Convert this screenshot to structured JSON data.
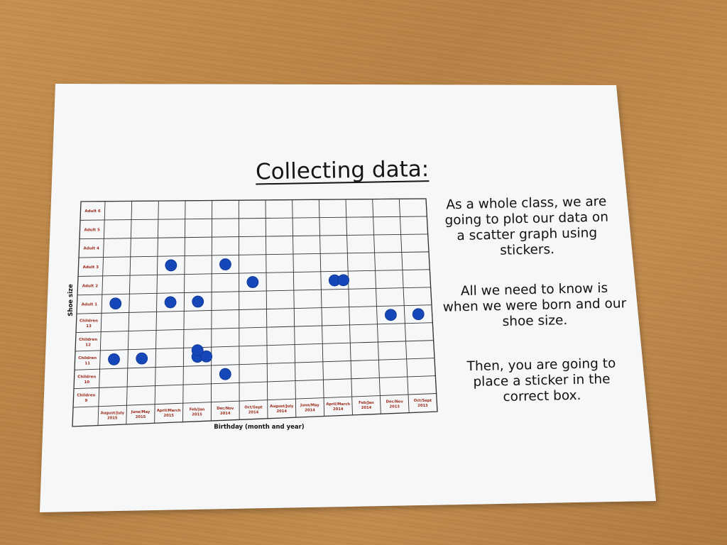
{
  "title": "Collecting data:",
  "notes": [
    "As a whole class, we are going to plot our data on a scatter graph using stickers.",
    "All we need to know is when we were born and our shoe size.",
    "Then, you are going to place a sticker in the correct box."
  ],
  "colors": {
    "sticker": "#1647b8",
    "grid": "#333333",
    "label": "#9a2a1a"
  },
  "chart_data": {
    "type": "scatter",
    "title": "",
    "xlabel": "Birthday (month and year)",
    "ylabel": "Shoe size",
    "x_categories": [
      [
        "August/July",
        "2015"
      ],
      [
        "June/May",
        "2015"
      ],
      [
        "April/March",
        "2015"
      ],
      [
        "Feb/Jan",
        "2015"
      ],
      [
        "Dec/Nov",
        "2014"
      ],
      [
        "Oct/Sept",
        "2014"
      ],
      [
        "August/July",
        "2014"
      ],
      [
        "June/May",
        "2014"
      ],
      [
        "April/March",
        "2014"
      ],
      [
        "Feb/Jan",
        "2014"
      ],
      [
        "Dec/Nov",
        "2013"
      ],
      [
        "Oct/Sept",
        "2013"
      ]
    ],
    "y_categories": [
      [
        "Children",
        "9"
      ],
      [
        "Children",
        "10"
      ],
      [
        "Children",
        "11"
      ],
      [
        "Children",
        "12"
      ],
      [
        "Children",
        "13"
      ],
      [
        "Adult 1"
      ],
      [
        "Adult 2"
      ],
      [
        "Adult 3"
      ],
      [
        "Adult 4"
      ],
      [
        "Adult 5"
      ],
      [
        "Adult 6"
      ]
    ],
    "points": [
      {
        "x": "August/July 2015",
        "y": "Adult 1"
      },
      {
        "x": "August/July 2015",
        "y": "Children 11"
      },
      {
        "x": "June/May 2015",
        "y": "Children 11"
      },
      {
        "x": "April/March 2015",
        "y": "Adult 3"
      },
      {
        "x": "April/March 2015",
        "y": "Adult 1"
      },
      {
        "x": "Feb/Jan 2015",
        "y": "Adult 1"
      },
      {
        "x": "Feb/Jan 2015",
        "y": "Children 11"
      },
      {
        "x": "Feb/Jan 2015",
        "y": "Children 11"
      },
      {
        "x": "Feb/Jan 2015",
        "y": "Children 11"
      },
      {
        "x": "Dec/Nov 2014",
        "y": "Adult 3"
      },
      {
        "x": "Dec/Nov 2014",
        "y": "Children 10"
      },
      {
        "x": "Oct/Sept 2014",
        "y": "Adult 2"
      },
      {
        "x": "April/March 2014",
        "y": "Adult 2"
      },
      {
        "x": "April/March 2014",
        "y": "Adult 2"
      },
      {
        "x": "Dec/Nov 2013",
        "y": "Children 13"
      },
      {
        "x": "Oct/Sept 2013",
        "y": "Children 13"
      }
    ]
  }
}
